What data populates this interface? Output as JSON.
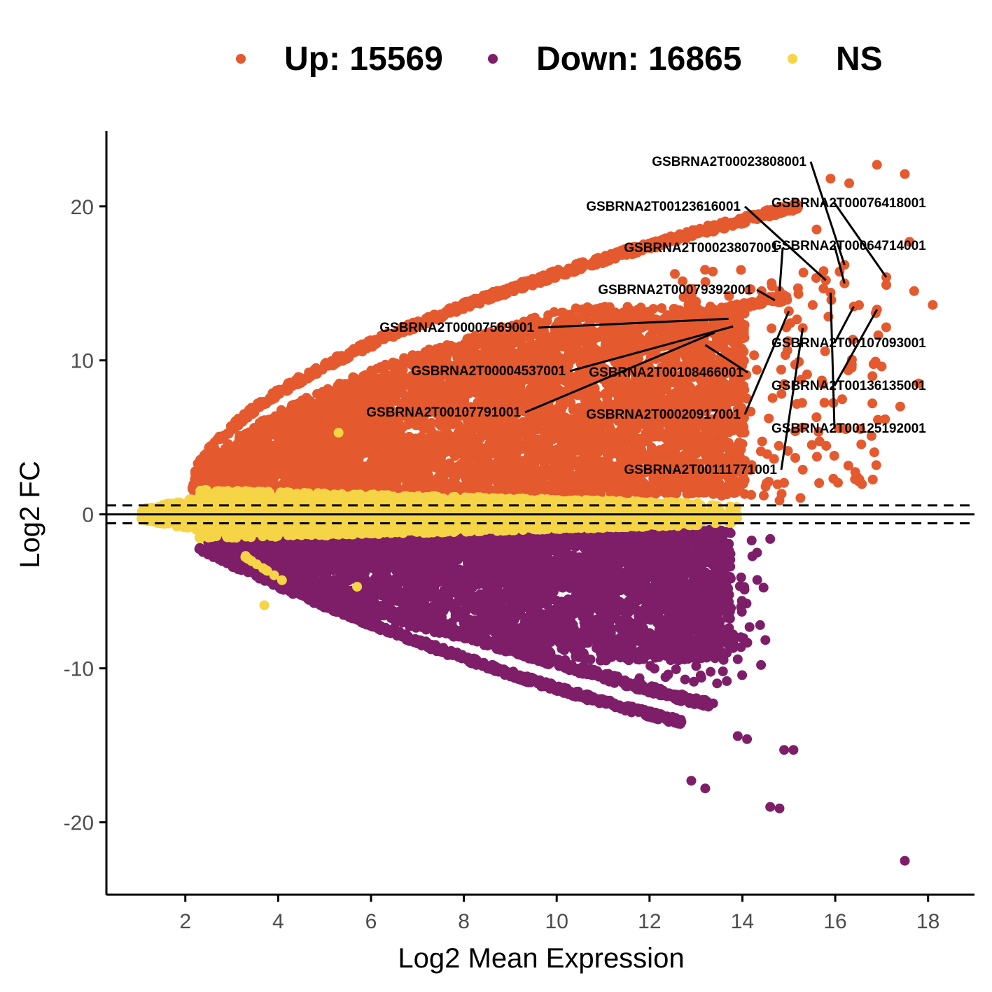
{
  "legend": {
    "items": [
      {
        "label": "Up: 15569",
        "color": "#E45A2E"
      },
      {
        "label": "Down: 16865",
        "color": "#7E1E68"
      },
      {
        "label": "NS",
        "color": "#F5D445"
      }
    ]
  },
  "chart_data": {
    "type": "scatter",
    "title": "",
    "xlabel": "Log2 Mean Expression",
    "ylabel": "Log2 FC",
    "xlim": [
      0.3,
      19.0
    ],
    "ylim": [
      -24.7,
      24.9
    ],
    "xticks": [
      2,
      4,
      6,
      8,
      10,
      12,
      14,
      16,
      18
    ],
    "yticks": [
      -20,
      -10,
      0,
      10,
      20
    ],
    "hlines": [
      {
        "y": 0,
        "style": "solid"
      },
      {
        "y": 0.58,
        "style": "dashed"
      },
      {
        "y": -0.58,
        "style": "dashed"
      }
    ],
    "series": [
      {
        "name": "Up: 15569",
        "color": "#E45A2E",
        "count": 15569
      },
      {
        "name": "Down: 16865",
        "color": "#7E1E68",
        "count": 16865
      },
      {
        "name": "NS",
        "color": "#F5D445"
      }
    ],
    "labeled_genes": [
      {
        "label": "GSBRNA2T00023808001",
        "x": 16.2,
        "y": 16.2
      },
      {
        "label": "GSBRNA2T00123616001",
        "x": 15.8,
        "y": 15.2
      },
      {
        "label": "GSBRNA2T00076418001",
        "x": 17.1,
        "y": 15.4
      },
      {
        "label": "GSBRNA2T00064714001",
        "x": 16.2,
        "y": 15.0
      },
      {
        "label": "GSBRNA2T00023807001",
        "x": 14.8,
        "y": 14.5
      },
      {
        "label": "GSBRNA2T00079392001",
        "x": 14.7,
        "y": 13.9
      },
      {
        "label": "GSBRNA2T00007569001",
        "x": 13.7,
        "y": 12.7
      },
      {
        "label": "GSBRNA2T00004537001",
        "x": 13.8,
        "y": 12.2
      },
      {
        "label": "GSBRNA2T00108466001",
        "x": 13.2,
        "y": 11.0
      },
      {
        "label": "GSBRNA2T00107791001",
        "x": 13.4,
        "y": 11.8
      },
      {
        "label": "GSBRNA2T00020917001",
        "x": 15.0,
        "y": 13.2
      },
      {
        "label": "GSBRNA2T00107093001",
        "x": 16.4,
        "y": 13.5
      },
      {
        "label": "GSBRNA2T00136135001",
        "x": 16.9,
        "y": 13.3
      },
      {
        "label": "GSBRNA2T00125192001",
        "x": 15.9,
        "y": 14.4
      },
      {
        "label": "GSBRNA2T00111771001",
        "x": 15.3,
        "y": 12.1
      }
    ],
    "outliers": {
      "up": [
        [
          16.9,
          22.7
        ],
        [
          17.5,
          22.1
        ],
        [
          15.9,
          21.8
        ],
        [
          16.3,
          21.5
        ],
        [
          15.6,
          18.5
        ],
        [
          17.6,
          17.7
        ],
        [
          17.1,
          14.9
        ],
        [
          17.7,
          14.5
        ],
        [
          18.1,
          13.6
        ],
        [
          17.0,
          9.6
        ],
        [
          17.8,
          8.5
        ],
        [
          16.8,
          7.2
        ],
        [
          17.4,
          7.0
        ],
        [
          15.3,
          2.9
        ],
        [
          14.8,
          0.9
        ],
        [
          14.2,
          3.2
        ],
        [
          14.5,
          1.8
        ]
      ],
      "up_ns": [
        [
          5.3,
          5.3
        ]
      ],
      "down": [
        [
          17.5,
          -22.5
        ],
        [
          14.6,
          -19.0
        ],
        [
          14.8,
          -19.1
        ],
        [
          14.2,
          -1.7
        ],
        [
          14.6,
          -1.6
        ],
        [
          13.8,
          -7.8
        ],
        [
          12.4,
          -10.4
        ],
        [
          15.1,
          -15.3
        ],
        [
          14.9,
          -15.3
        ],
        [
          14.1,
          -14.6
        ],
        [
          13.9,
          -14.4
        ],
        [
          13.2,
          -17.8
        ],
        [
          12.9,
          -17.3
        ]
      ],
      "ns": [
        [
          5.7,
          -4.7
        ],
        [
          3.7,
          -5.9
        ],
        [
          3.3,
          -2.7
        ]
      ]
    }
  }
}
